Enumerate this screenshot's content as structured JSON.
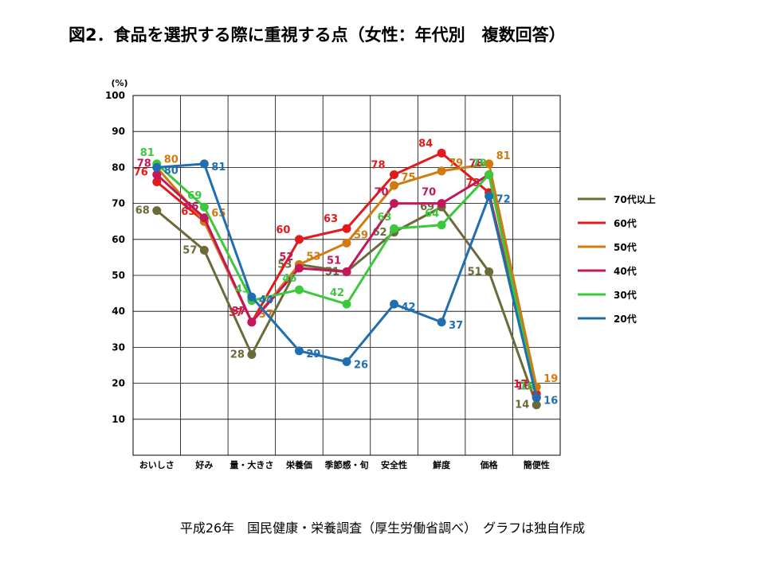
{
  "title": "図2．食品を選択する際に重視する点（女性：年代別　複数回答）",
  "footer": "平成26年　国民健康・栄養調査（厚生労働省調べ）　グラフは独自作成",
  "chart_data": {
    "type": "line",
    "title": "図2．食品を選択する際に重視する点（女性：年代別　複数回答）",
    "ylabel": "(%)",
    "xlabel": "",
    "ylim": [
      0,
      100
    ],
    "yticks": [
      10,
      20,
      30,
      40,
      50,
      60,
      70,
      80,
      90,
      100
    ],
    "grid": true,
    "legend_position": "right",
    "categories": [
      "おいしさ",
      "好み",
      "量・大きさ",
      "栄養価",
      "季節感・旬",
      "安全性",
      "鮮度",
      "価格",
      "簡便性"
    ],
    "series": [
      {
        "name": "70代以上",
        "color": "#6b6b3a",
        "values": [
          68,
          57,
          28,
          53,
          51,
          62,
          69,
          51,
          14
        ],
        "labels": [
          "68",
          "57",
          "28",
          "53",
          "51",
          "62",
          "69",
          "51",
          "14"
        ]
      },
      {
        "name": "60代",
        "color": "#e31a1c",
        "values": [
          76,
          65,
          37,
          60,
          63,
          78,
          84,
          73,
          17
        ],
        "labels": [
          "76",
          "65",
          "37",
          "60",
          "63",
          "78",
          "84",
          "73",
          "17"
        ]
      },
      {
        "name": "50代",
        "color": "#d07a10",
        "values": [
          80,
          65,
          37,
          53,
          59,
          75,
          79,
          81,
          19
        ],
        "labels": [
          "80",
          "65",
          "37",
          "53",
          "59",
          "75",
          "79",
          "81",
          "19"
        ]
      },
      {
        "name": "40代",
        "color": "#c2185b",
        "values": [
          78,
          66,
          37,
          52,
          51,
          70,
          70,
          78,
          16
        ],
        "labels": [
          "78",
          "66",
          "37",
          "52",
          "51",
          "70",
          "70",
          "78",
          "16"
        ]
      },
      {
        "name": "30代",
        "color": "#3cc83c",
        "values": [
          81,
          69,
          43,
          46,
          42,
          63,
          64,
          78,
          16
        ],
        "labels": [
          "81",
          "69",
          "43",
          "46",
          "42",
          "63",
          "64",
          "78",
          "16"
        ]
      },
      {
        "name": "20代",
        "color": "#1f6fb0",
        "values": [
          80,
          81,
          44,
          29,
          26,
          42,
          37,
          72,
          16
        ],
        "labels": [
          "80",
          "81",
          "44",
          "29",
          "26",
          "42",
          "37",
          "72",
          "16"
        ]
      }
    ]
  }
}
